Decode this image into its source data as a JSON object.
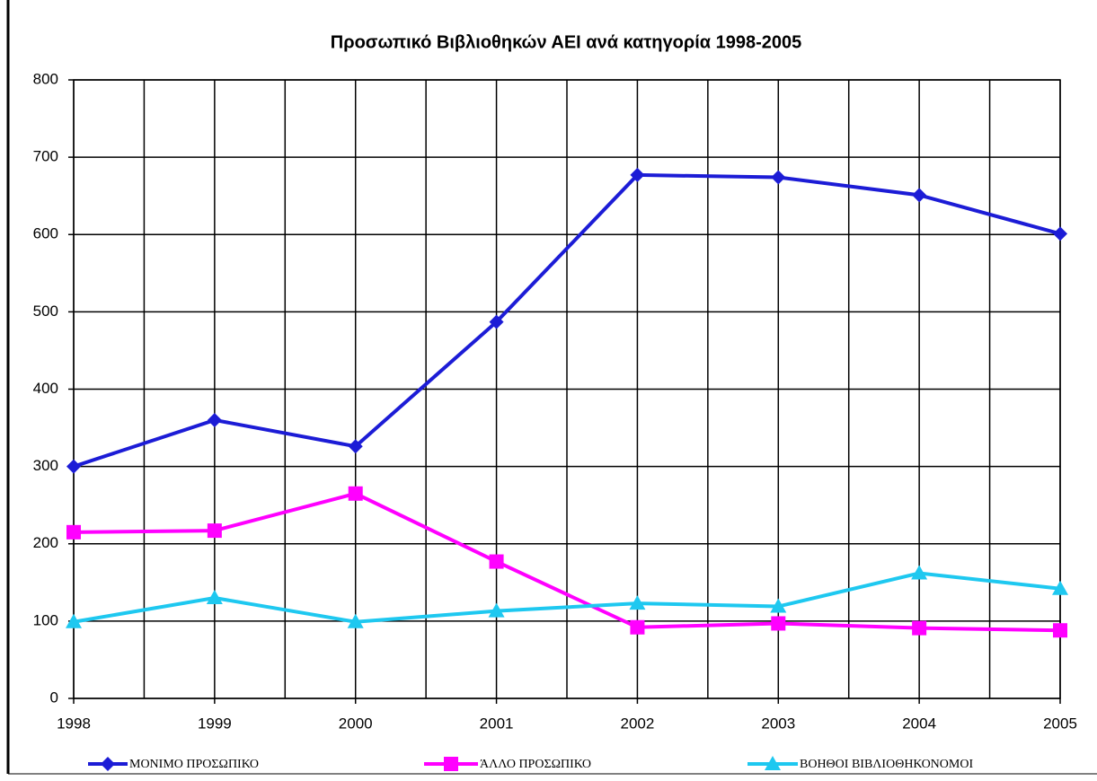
{
  "chart_data": {
    "type": "line",
    "title": "Προσωπικό Βιβλιοθηκών ΑΕΙ ανά κατηγορία 1998-2005",
    "x": [
      1998,
      1999,
      2000,
      2001,
      2002,
      2003,
      2004,
      2005
    ],
    "xlim": [
      1998,
      2005
    ],
    "xticks": [
      1998,
      1999,
      2000,
      2001,
      2002,
      2003,
      2004,
      2005
    ],
    "x_grid_step": 0.5,
    "ylim": [
      0,
      800
    ],
    "yticks": [
      0,
      100,
      200,
      300,
      400,
      500,
      600,
      700,
      800
    ],
    "grid": true,
    "legend": "bottom",
    "series": [
      {
        "name": "ΜΟΝΙΜΟ ΠΡΟΣΩΠΙΚΟ",
        "color": "#1c1cd6",
        "marker": "diamond",
        "values": [
          300,
          360,
          326,
          487,
          677,
          674,
          651,
          601
        ]
      },
      {
        "name": "ΆΛΛΟ ΠΡΟΣΩΠΙΚΟ",
        "color": "#ff00ff",
        "marker": "square",
        "values": [
          215,
          217,
          265,
          177,
          92,
          97,
          91,
          88
        ]
      },
      {
        "name": "ΒΟΗΘΟΙ ΒΙΒΛΙΟΘΗΚΟΝΟΜΟΙ",
        "color": "#1ec8f0",
        "marker": "triangle",
        "values": [
          99,
          130,
          99,
          113,
          123,
          119,
          162,
          142
        ]
      }
    ]
  }
}
